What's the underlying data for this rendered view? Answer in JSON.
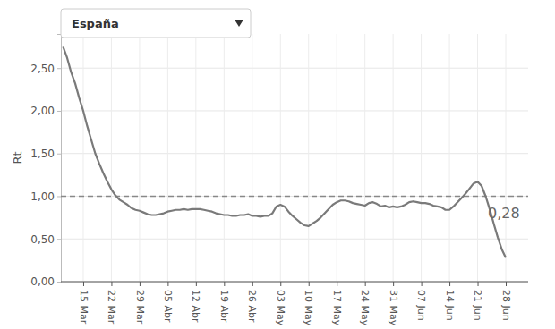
{
  "chart_data": {
    "type": "line",
    "title": "España",
    "y_label": "Rt",
    "categories": [
      null,
      null,
      null,
      null,
      null,
      "15 Mar",
      null,
      null,
      null,
      null,
      null,
      null,
      "22 Mar",
      null,
      null,
      null,
      null,
      null,
      null,
      "29 Mar",
      null,
      null,
      null,
      null,
      null,
      null,
      "05 Abr",
      null,
      null,
      null,
      null,
      null,
      null,
      "12 Abr",
      null,
      null,
      null,
      null,
      null,
      null,
      "19 Abr",
      null,
      null,
      null,
      null,
      null,
      null,
      "26 Abr",
      null,
      null,
      null,
      null,
      null,
      null,
      "03 May",
      null,
      null,
      null,
      null,
      null,
      null,
      "10 May",
      null,
      null,
      null,
      null,
      null,
      null,
      "17 May",
      null,
      null,
      null,
      null,
      null,
      null,
      "24 May",
      null,
      null,
      null,
      null,
      null,
      null,
      "31 May",
      null,
      null,
      null,
      null,
      null,
      null,
      "07 Jun",
      null,
      null,
      null,
      null,
      null,
      null,
      "14 Jun",
      null,
      null,
      null,
      null,
      null,
      null,
      "21 Jun",
      null,
      null,
      null,
      null,
      null,
      null,
      "28 Jun"
    ],
    "values": [
      2.75,
      2.62,
      2.45,
      2.32,
      2.15,
      2.0,
      1.82,
      1.66,
      1.5,
      1.38,
      1.27,
      1.17,
      1.08,
      1.01,
      0.96,
      0.93,
      0.9,
      0.86,
      0.84,
      0.83,
      0.81,
      0.79,
      0.78,
      0.78,
      0.79,
      0.8,
      0.82,
      0.83,
      0.84,
      0.84,
      0.85,
      0.84,
      0.85,
      0.85,
      0.85,
      0.84,
      0.83,
      0.82,
      0.8,
      0.79,
      0.78,
      0.78,
      0.77,
      0.77,
      0.78,
      0.78,
      0.79,
      0.77,
      0.77,
      0.76,
      0.77,
      0.77,
      0.8,
      0.88,
      0.9,
      0.88,
      0.82,
      0.77,
      0.73,
      0.69,
      0.66,
      0.65,
      0.68,
      0.71,
      0.75,
      0.8,
      0.85,
      0.9,
      0.93,
      0.95,
      0.95,
      0.94,
      0.92,
      0.91,
      0.9,
      0.89,
      0.92,
      0.93,
      0.91,
      0.88,
      0.89,
      0.87,
      0.88,
      0.87,
      0.88,
      0.9,
      0.93,
      0.94,
      0.93,
      0.92,
      0.92,
      0.91,
      0.89,
      0.88,
      0.87,
      0.84,
      0.84,
      0.88,
      0.93,
      0.98,
      1.03,
      1.09,
      1.15,
      1.17,
      1.12,
      1.0,
      0.85,
      0.68,
      0.52,
      0.38,
      0.28
    ],
    "color": "#7a7a7a",
    "ylim": [
      0,
      2.9
    ],
    "yticks": [
      {
        "value": 0,
        "label": "0,00"
      },
      {
        "value": 0.5,
        "label": "0,50"
      },
      {
        "value": 1,
        "label": "1,00"
      },
      {
        "value": 1.5,
        "label": "1,50"
      },
      {
        "value": 2,
        "label": "2,00"
      },
      {
        "value": 2.5,
        "label": "2,50"
      }
    ],
    "grid": true,
    "threshold": 1,
    "annotations": [
      {
        "text": "0,28",
        "value": 0.28
      }
    ]
  }
}
